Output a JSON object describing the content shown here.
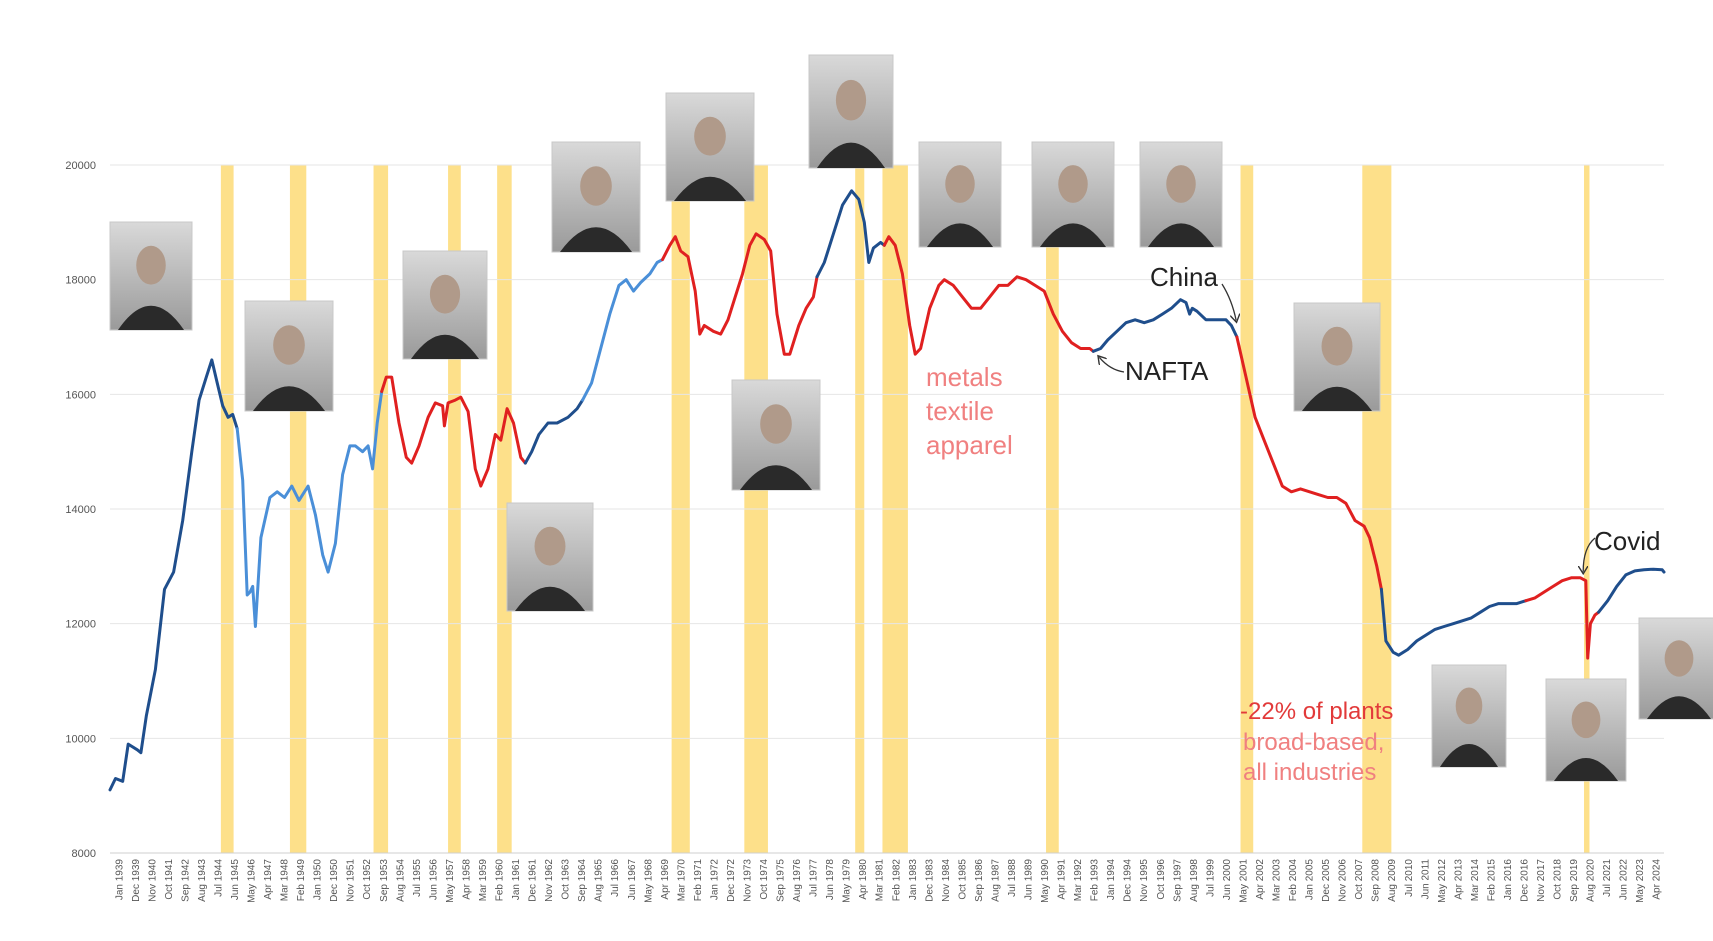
{
  "chart_data": {
    "type": "line",
    "title": "",
    "xlabel": "",
    "ylabel": "",
    "ylim": [
      8000,
      20000
    ],
    "yticks": [
      8000,
      10000,
      12000,
      14000,
      16000,
      18000,
      20000
    ],
    "grid": true,
    "legend": "none",
    "x_range": [
      1939.0,
      2024.5
    ],
    "x_tick_labels": [
      "Jan 1939",
      "Dec 1939",
      "Nov 1940",
      "Oct 1941",
      "Sep 1942",
      "Aug 1943",
      "Jul 1944",
      "Jun 1945",
      "May 1946",
      "Apr 1947",
      "Mar 1948",
      "Feb 1949",
      "Jan 1950",
      "Dec 1950",
      "Nov 1951",
      "Oct 1952",
      "Sep 1953",
      "Aug 1954",
      "Jul 1955",
      "Jun 1956",
      "May 1957",
      "Apr 1958",
      "Mar 1959",
      "Feb 1960",
      "Jan 1961",
      "Dec 1961",
      "Nov 1962",
      "Oct 1963",
      "Sep 1964",
      "Aug 1965",
      "Jul 1966",
      "Jun 1967",
      "May 1968",
      "Apr 1969",
      "Mar 1970",
      "Feb 1971",
      "Jan 1972",
      "Dec 1972",
      "Nov 1973",
      "Oct 1974",
      "Sep 1975",
      "Aug 1976",
      "Jul 1977",
      "Jun 1978",
      "May 1979",
      "Apr 1980",
      "Mar 1981",
      "Feb 1982",
      "Jan 1983",
      "Dec 1983",
      "Nov 1984",
      "Oct 1985",
      "Sep 1986",
      "Aug 1987",
      "Jul 1988",
      "Jun 1989",
      "May 1990",
      "Apr 1991",
      "Mar 1992",
      "Feb 1993",
      "Jan 1994",
      "Dec 1994",
      "Nov 1995",
      "Oct 1996",
      "Sep 1997",
      "Aug 1998",
      "Jul 1999",
      "Jun 2000",
      "May 2001",
      "Apr 2002",
      "Mar 2003",
      "Feb 2004",
      "Jan 2005",
      "Dec 2005",
      "Nov 2006",
      "Oct 2007",
      "Sep 2008",
      "Aug 2009",
      "Jul 2010",
      "Jun 2011",
      "May 2012",
      "Apr 2013",
      "Mar 2014",
      "Feb 2015",
      "Jan 2016",
      "Dec 2016",
      "Nov 2017",
      "Oct 2018",
      "Sep 2019",
      "Aug 2020",
      "Jul 2021",
      "Jun 2022",
      "May 2023",
      "Apr 2024"
    ],
    "recessions": [
      [
        1945.1,
        1945.8
      ],
      [
        1948.9,
        1949.8
      ],
      [
        1953.5,
        1954.3
      ],
      [
        1957.6,
        1958.3
      ],
      [
        1960.3,
        1961.1
      ],
      [
        1969.9,
        1970.9
      ],
      [
        1973.9,
        1975.2
      ],
      [
        1980.0,
        1980.5
      ],
      [
        1981.5,
        1982.9
      ],
      [
        1990.5,
        1991.2
      ],
      [
        2001.2,
        2001.9
      ],
      [
        2007.9,
        2009.5
      ],
      [
        2020.1,
        2020.4
      ]
    ],
    "series": [
      {
        "color": "#1f4e8c",
        "points": [
          [
            1939.0,
            9100
          ],
          [
            1939.3,
            9300
          ],
          [
            1939.7,
            9250
          ],
          [
            1940.0,
            9900
          ],
          [
            1940.5,
            9800
          ],
          [
            1940.7,
            9750
          ],
          [
            1941.0,
            10400
          ],
          [
            1941.5,
            11200
          ],
          [
            1942.0,
            12600
          ],
          [
            1942.5,
            12900
          ],
          [
            1943.0,
            13800
          ],
          [
            1943.5,
            15000
          ],
          [
            1943.9,
            15900
          ],
          [
            1944.3,
            16300
          ],
          [
            1944.6,
            16600
          ],
          [
            1944.9,
            16200
          ],
          [
            1945.2,
            15800
          ],
          [
            1945.5,
            15600
          ],
          [
            1945.75,
            15650
          ],
          [
            1946.0,
            15400
          ]
        ]
      },
      {
        "color": "#4a8fd8",
        "points": [
          [
            1946.0,
            15400
          ],
          [
            1946.3,
            14500
          ],
          [
            1946.55,
            12500
          ],
          [
            1946.7,
            12550
          ],
          [
            1946.85,
            12650
          ],
          [
            1947.0,
            11950
          ],
          [
            1947.3,
            13500
          ],
          [
            1947.8,
            14200
          ],
          [
            1948.2,
            14300
          ],
          [
            1948.6,
            14200
          ],
          [
            1949.0,
            14400
          ],
          [
            1949.4,
            14150
          ],
          [
            1949.9,
            14400
          ],
          [
            1950.3,
            13900
          ],
          [
            1950.7,
            13200
          ],
          [
            1951.0,
            12900
          ],
          [
            1951.4,
            13400
          ],
          [
            1951.8,
            14600
          ],
          [
            1952.2,
            15100
          ],
          [
            1952.5,
            15100
          ],
          [
            1952.9,
            15000
          ],
          [
            1953.2,
            15100
          ],
          [
            1953.45,
            14700
          ],
          [
            1953.7,
            15500
          ],
          [
            1953.95,
            16050
          ]
        ]
      },
      {
        "color": "#e02020",
        "points": [
          [
            1953.95,
            16050
          ],
          [
            1954.2,
            16300
          ],
          [
            1954.5,
            16300
          ],
          [
            1954.9,
            15500
          ],
          [
            1955.3,
            14900
          ],
          [
            1955.6,
            14800
          ],
          [
            1956.0,
            15100
          ],
          [
            1956.5,
            15600
          ],
          [
            1956.9,
            15850
          ],
          [
            1957.3,
            15800
          ],
          [
            1957.4,
            15450
          ],
          [
            1957.6,
            15850
          ],
          [
            1958.0,
            15900
          ],
          [
            1958.3,
            15950
          ],
          [
            1958.7,
            15700
          ],
          [
            1959.1,
            14700
          ],
          [
            1959.4,
            14400
          ],
          [
            1959.8,
            14700
          ],
          [
            1960.2,
            15300
          ],
          [
            1960.5,
            15200
          ],
          [
            1960.85,
            15750
          ],
          [
            1961.2,
            15500
          ],
          [
            1961.6,
            14900
          ],
          [
            1961.85,
            14800
          ]
        ]
      },
      {
        "color": "#1f4e8c",
        "points": [
          [
            1961.85,
            14800
          ],
          [
            1962.2,
            15000
          ],
          [
            1962.6,
            15300
          ],
          [
            1963.1,
            15500
          ],
          [
            1963.6,
            15500
          ],
          [
            1964.2,
            15600
          ],
          [
            1964.7,
            15750
          ],
          [
            1965.0,
            15900
          ]
        ]
      },
      {
        "color": "#4a8fd8",
        "points": [
          [
            1965.0,
            15900
          ],
          [
            1965.5,
            16200
          ],
          [
            1966.0,
            16800
          ],
          [
            1966.5,
            17400
          ],
          [
            1967.0,
            17900
          ],
          [
            1967.4,
            18000
          ],
          [
            1967.8,
            17800
          ],
          [
            1968.2,
            17950
          ],
          [
            1968.7,
            18100
          ],
          [
            1969.1,
            18300
          ],
          [
            1969.4,
            18350
          ]
        ]
      },
      {
        "color": "#e02020",
        "points": [
          [
            1969.4,
            18350
          ],
          [
            1969.8,
            18600
          ],
          [
            1970.1,
            18750
          ],
          [
            1970.4,
            18500
          ],
          [
            1970.8,
            18400
          ],
          [
            1971.2,
            17800
          ],
          [
            1971.45,
            17050
          ],
          [
            1971.7,
            17200
          ],
          [
            1972.2,
            17100
          ],
          [
            1972.6,
            17050
          ],
          [
            1973.0,
            17300
          ],
          [
            1973.4,
            17700
          ],
          [
            1973.8,
            18100
          ],
          [
            1974.2,
            18600
          ],
          [
            1974.55,
            18800
          ],
          [
            1975.0,
            18700
          ],
          [
            1975.35,
            18500
          ],
          [
            1975.7,
            17400
          ],
          [
            1976.1,
            16700
          ],
          [
            1976.4,
            16700
          ],
          [
            1976.9,
            17200
          ],
          [
            1977.3,
            17500
          ],
          [
            1977.7,
            17700
          ],
          [
            1977.9,
            18050
          ]
        ]
      },
      {
        "color": "#1f4e8c",
        "points": [
          [
            1977.9,
            18050
          ],
          [
            1978.3,
            18300
          ],
          [
            1978.8,
            18800
          ],
          [
            1979.3,
            19300
          ],
          [
            1979.8,
            19550
          ],
          [
            1980.2,
            19400
          ],
          [
            1980.5,
            19000
          ],
          [
            1980.75,
            18300
          ],
          [
            1981.0,
            18550
          ],
          [
            1981.4,
            18650
          ],
          [
            1981.6,
            18600
          ]
        ]
      },
      {
        "color": "#e02020",
        "points": [
          [
            1981.6,
            18600
          ],
          [
            1981.85,
            18750
          ],
          [
            1982.2,
            18600
          ],
          [
            1982.6,
            18100
          ],
          [
            1983.0,
            17200
          ],
          [
            1983.3,
            16700
          ],
          [
            1983.6,
            16800
          ],
          [
            1984.1,
            17500
          ],
          [
            1984.6,
            17900
          ],
          [
            1984.9,
            18000
          ],
          [
            1985.4,
            17900
          ],
          [
            1985.9,
            17700
          ],
          [
            1986.4,
            17500
          ],
          [
            1986.9,
            17500
          ],
          [
            1987.4,
            17700
          ],
          [
            1987.9,
            17900
          ],
          [
            1988.4,
            17900
          ],
          [
            1988.9,
            18050
          ],
          [
            1989.4,
            18000
          ],
          [
            1989.9,
            17900
          ],
          [
            1990.4,
            17800
          ],
          [
            1990.9,
            17400
          ],
          [
            1991.4,
            17100
          ],
          [
            1991.9,
            16900
          ],
          [
            1992.4,
            16800
          ],
          [
            1992.9,
            16800
          ],
          [
            1993.1,
            16750
          ]
        ]
      },
      {
        "color": "#1f4e8c",
        "points": [
          [
            1993.1,
            16750
          ],
          [
            1993.5,
            16800
          ],
          [
            1993.9,
            16950
          ],
          [
            1994.4,
            17100
          ],
          [
            1994.9,
            17250
          ],
          [
            1995.4,
            17300
          ],
          [
            1995.9,
            17250
          ],
          [
            1996.4,
            17300
          ],
          [
            1996.9,
            17400
          ],
          [
            1997.4,
            17500
          ],
          [
            1997.9,
            17650
          ],
          [
            1998.2,
            17600
          ],
          [
            1998.4,
            17400
          ],
          [
            1998.55,
            17500
          ],
          [
            1998.8,
            17450
          ],
          [
            1999.3,
            17300
          ],
          [
            1999.9,
            17300
          ],
          [
            2000.4,
            17300
          ],
          [
            2000.7,
            17200
          ],
          [
            2001.0,
            17000
          ]
        ]
      },
      {
        "color": "#e02020",
        "points": [
          [
            2001.0,
            17000
          ],
          [
            2001.5,
            16300
          ],
          [
            2002.0,
            15600
          ],
          [
            2002.5,
            15200
          ],
          [
            2003.0,
            14800
          ],
          [
            2003.5,
            14400
          ],
          [
            2004.0,
            14300
          ],
          [
            2004.5,
            14350
          ],
          [
            2005.0,
            14300
          ],
          [
            2005.5,
            14250
          ],
          [
            2006.0,
            14200
          ],
          [
            2006.5,
            14200
          ],
          [
            2007.0,
            14100
          ],
          [
            2007.5,
            13800
          ],
          [
            2008.0,
            13700
          ],
          [
            2008.3,
            13500
          ],
          [
            2008.7,
            13000
          ],
          [
            2008.95,
            12600
          ]
        ]
      },
      {
        "color": "#1f4e8c",
        "points": [
          [
            2008.95,
            12600
          ],
          [
            2009.2,
            11700
          ],
          [
            2009.6,
            11500
          ],
          [
            2009.9,
            11450
          ],
          [
            2010.4,
            11550
          ],
          [
            2010.9,
            11700
          ],
          [
            2011.4,
            11800
          ],
          [
            2011.9,
            11900
          ],
          [
            2012.4,
            11950
          ],
          [
            2012.9,
            12000
          ],
          [
            2013.4,
            12050
          ],
          [
            2013.9,
            12100
          ],
          [
            2014.4,
            12200
          ],
          [
            2014.9,
            12300
          ],
          [
            2015.4,
            12350
          ],
          [
            2015.9,
            12350
          ],
          [
            2016.4,
            12350
          ],
          [
            2016.9,
            12400
          ]
        ]
      },
      {
        "color": "#e02020",
        "points": [
          [
            2016.9,
            12400
          ],
          [
            2017.4,
            12450
          ],
          [
            2017.9,
            12550
          ],
          [
            2018.4,
            12650
          ],
          [
            2018.9,
            12750
          ],
          [
            2019.4,
            12800
          ],
          [
            2019.9,
            12800
          ],
          [
            2020.2,
            12750
          ],
          [
            2020.3,
            11400
          ],
          [
            2020.45,
            12000
          ],
          [
            2020.7,
            12150
          ],
          [
            2020.9,
            12200
          ]
        ]
      },
      {
        "color": "#1f4e8c",
        "points": [
          [
            2020.9,
            12200
          ],
          [
            2021.4,
            12400
          ],
          [
            2021.9,
            12650
          ],
          [
            2022.4,
            12850
          ],
          [
            2022.9,
            12920
          ],
          [
            2023.4,
            12940
          ],
          [
            2023.9,
            12950
          ],
          [
            2024.4,
            12940
          ],
          [
            2024.5,
            12900
          ]
        ]
      }
    ],
    "annotations": [
      {
        "id": "china",
        "text": "China",
        "color": "#222222"
      },
      {
        "id": "nafta",
        "text": "NAFTA",
        "color": "#222222"
      },
      {
        "id": "covid",
        "text": "Covid",
        "color": "#222222"
      },
      {
        "id": "metals",
        "lines": [
          "metals",
          "textile",
          "apparel"
        ],
        "color": "#f08080"
      },
      {
        "id": "plants",
        "lines": [
          "-22% of plants",
          "broad-based,",
          "all industries"
        ],
        "colors": [
          "#e23a3a",
          "#f08080",
          "#f08080"
        ]
      }
    ],
    "portraits": [
      "president-portrait-1",
      "president-portrait-2",
      "president-portrait-3",
      "president-portrait-4",
      "president-portrait-5",
      "president-portrait-6",
      "president-portrait-7",
      "president-portrait-8",
      "president-portrait-9",
      "president-portrait-10",
      "president-portrait-11",
      "president-portrait-12",
      "president-portrait-13",
      "president-portrait-14",
      "president-portrait-15"
    ]
  }
}
